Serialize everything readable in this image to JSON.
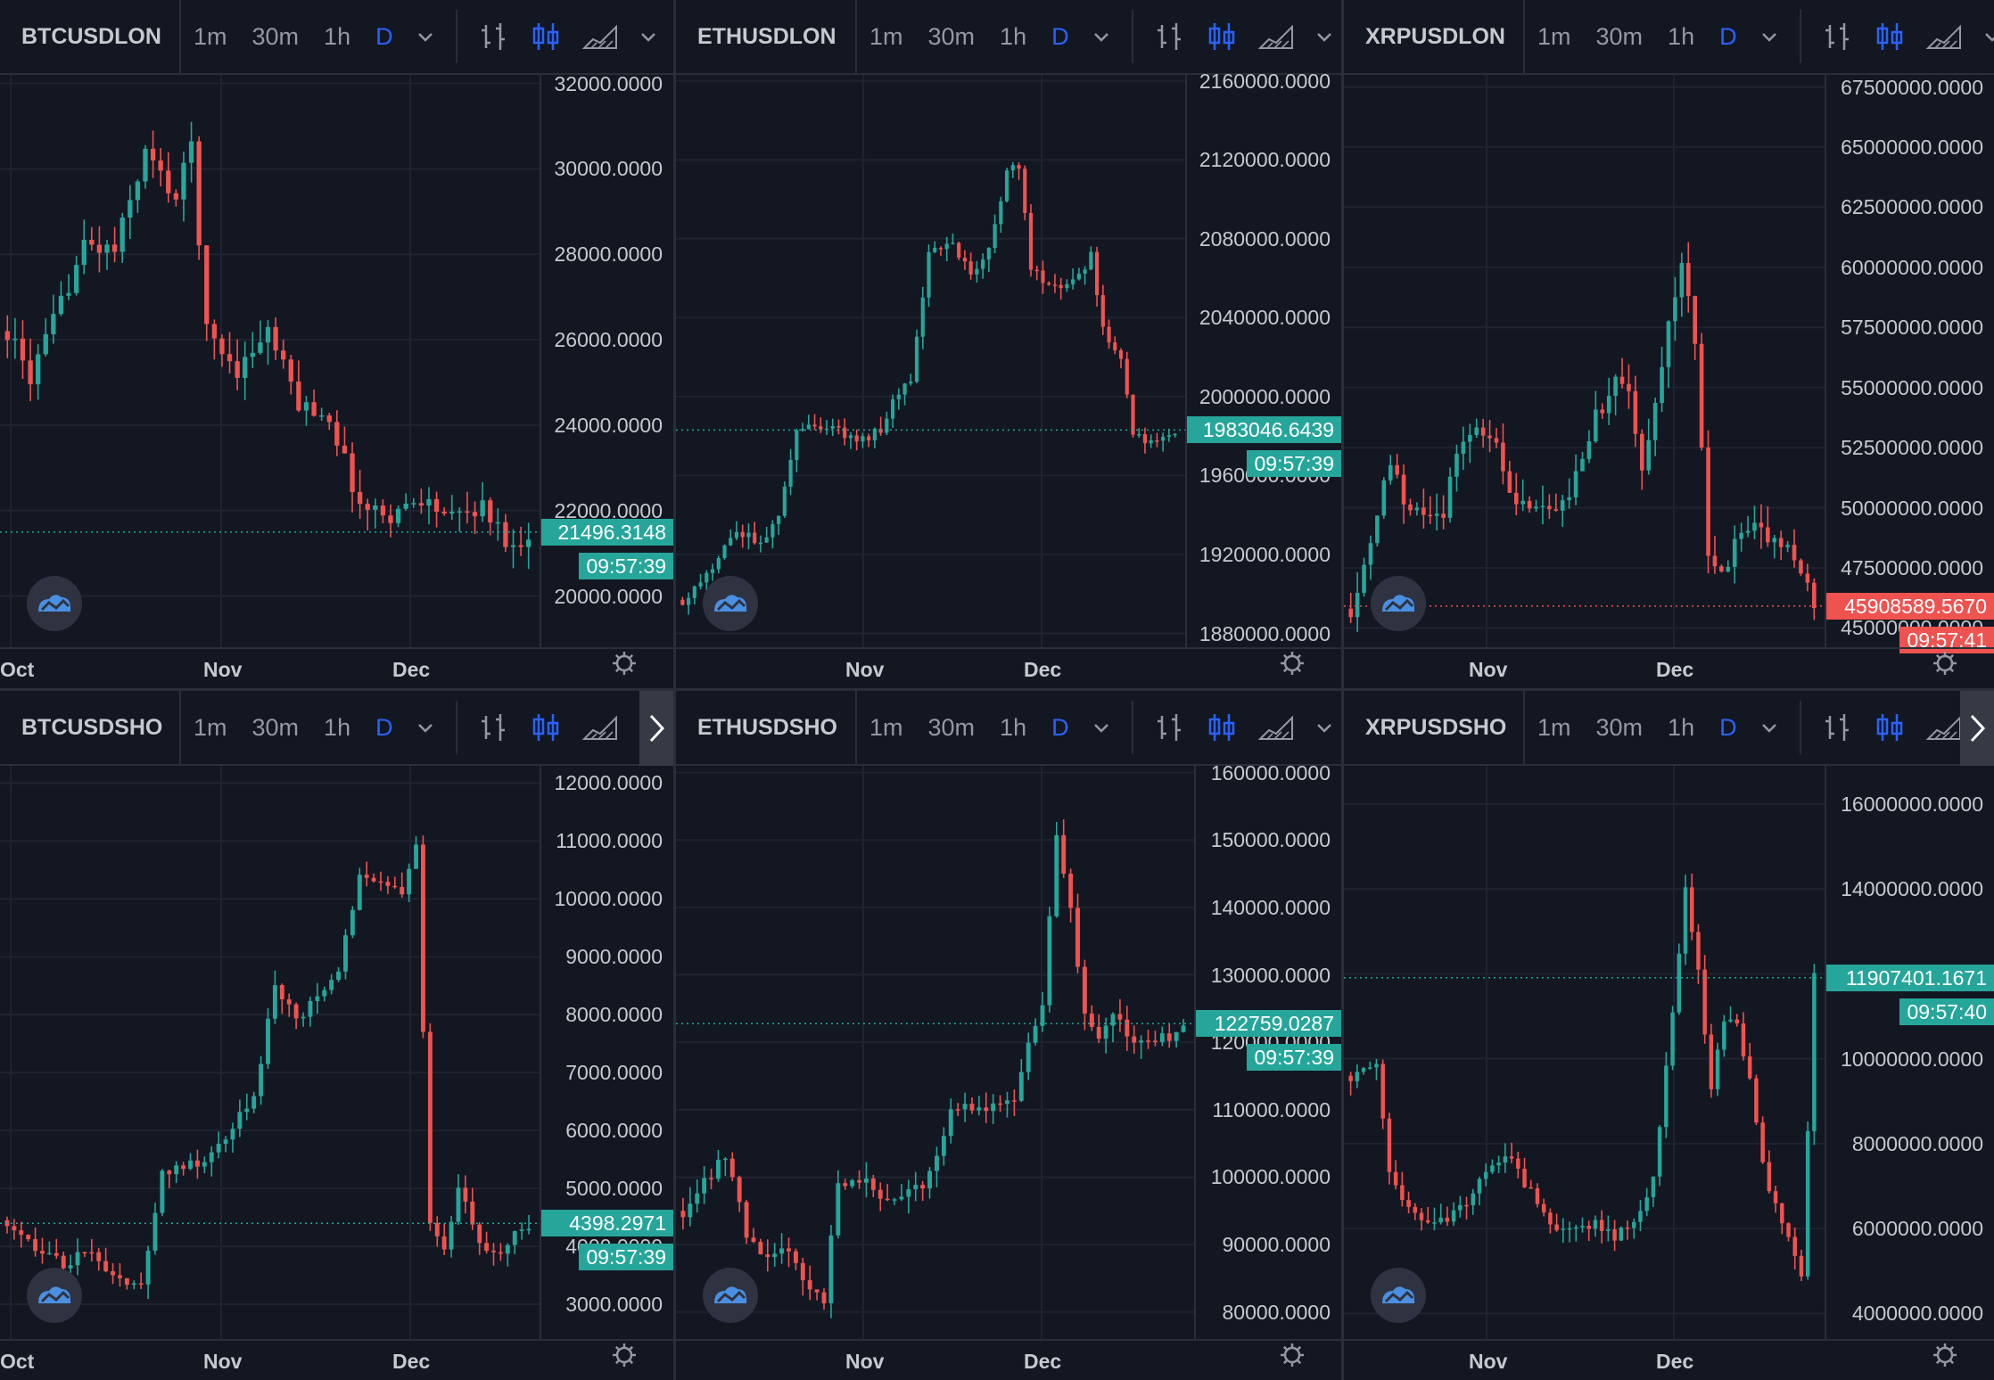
{
  "toolbar": {
    "intervals": [
      "1m",
      "30m",
      "1h",
      "D"
    ],
    "time_label": "09:57:39"
  },
  "colors": {
    "up": "#26a69a",
    "down": "#ef5350",
    "background": "#131722",
    "grid": "#1f2330",
    "accent": "#2962ff"
  },
  "chart_data": [
    {
      "type": "candlestick",
      "symbol": "BTCUSDLON",
      "x_labels": [
        "Oct",
        "Nov",
        "Dec"
      ],
      "y_ticks": [
        "32000.0000",
        "30000.0000",
        "28000.0000",
        "26000.0000",
        "24000.0000",
        "22000.0000",
        "20000.0000"
      ],
      "ylim": [
        18800,
        32200
      ],
      "last_price": "21496.3148",
      "last_direction": "up",
      "countdown": "09:57:39",
      "shape": [
        [
          0,
          26200
        ],
        [
          3,
          25100
        ],
        [
          6,
          26400
        ],
        [
          10,
          28200
        ],
        [
          14,
          28100
        ],
        [
          18,
          30400
        ],
        [
          22,
          29300
        ],
        [
          24,
          30600
        ],
        [
          26,
          26200
        ],
        [
          30,
          25300
        ],
        [
          34,
          26200
        ],
        [
          38,
          24500
        ],
        [
          42,
          24200
        ],
        [
          46,
          22100
        ],
        [
          50,
          21900
        ],
        [
          54,
          22300
        ],
        [
          58,
          21800
        ],
        [
          62,
          22100
        ],
        [
          66,
          21100
        ],
        [
          68,
          21500
        ]
      ],
      "highlow_spread": 520
    },
    {
      "type": "candlestick",
      "symbol": "ETHUSDLON",
      "x_labels": [
        "Nov",
        "Dec"
      ],
      "y_ticks": [
        "2160000.0000",
        "2120000.0000",
        "2080000.0000",
        "2040000.0000",
        "2000000.0000",
        "1960000.0000",
        "1920000.0000",
        "1880000.0000"
      ],
      "ylim": [
        1873000,
        2163000
      ],
      "last_price": "1983046.6439",
      "last_direction": "up",
      "countdown": "09:57:39",
      "shape": [
        [
          0,
          1897000
        ],
        [
          5,
          1913000
        ],
        [
          9,
          1932000
        ],
        [
          13,
          1925000
        ],
        [
          16,
          1937000
        ],
        [
          19,
          1982000
        ],
        [
          23,
          1986000
        ],
        [
          27,
          1981000
        ],
        [
          30,
          1978000
        ],
        [
          33,
          1983000
        ],
        [
          36,
          2003000
        ],
        [
          38,
          2007000
        ],
        [
          41,
          2075000
        ],
        [
          45,
          2076000
        ],
        [
          48,
          2062000
        ],
        [
          51,
          2074000
        ],
        [
          54,
          2115000
        ],
        [
          56,
          2118000
        ],
        [
          58,
          2065000
        ],
        [
          62,
          2055000
        ],
        [
          66,
          2060000
        ],
        [
          68,
          2072000
        ],
        [
          70,
          2033000
        ],
        [
          73,
          2017000
        ],
        [
          75,
          1983000
        ],
        [
          78,
          1976000
        ],
        [
          81,
          1980000
        ],
        [
          82,
          1983000
        ]
      ],
      "highlow_spread": 6500
    },
    {
      "type": "candlestick",
      "symbol": "XRPUSDLON",
      "x_labels": [
        "Nov",
        "Dec"
      ],
      "y_ticks": [
        "67500000.0000",
        "65000000.0000",
        "62500000.0000",
        "60000000.0000",
        "57500000.0000",
        "55000000.0000",
        "52500000.0000",
        "50000000.0000",
        "47500000.0000",
        "45000000.0000"
      ],
      "ylim": [
        44200000,
        68000000
      ],
      "last_price": "45908589.5670",
      "last_direction": "down",
      "countdown": "09:57:41",
      "shape": [
        [
          0,
          45800000
        ],
        [
          3,
          48500000
        ],
        [
          6,
          52000000
        ],
        [
          8,
          50200000
        ],
        [
          11,
          49800000
        ],
        [
          14,
          49600000
        ],
        [
          16,
          52300000
        ],
        [
          19,
          53200000
        ],
        [
          22,
          52700000
        ],
        [
          25,
          50100000
        ],
        [
          28,
          49800000
        ],
        [
          31,
          49800000
        ],
        [
          34,
          51200000
        ],
        [
          37,
          53800000
        ],
        [
          40,
          55100000
        ],
        [
          42,
          54600000
        ],
        [
          44,
          51400000
        ],
        [
          46,
          54000000
        ],
        [
          48,
          58000000
        ],
        [
          50,
          60000000
        ],
        [
          52,
          57000000
        ],
        [
          54,
          47800000
        ],
        [
          56,
          47200000
        ],
        [
          58,
          48500000
        ],
        [
          61,
          49300000
        ],
        [
          64,
          48400000
        ],
        [
          66,
          48700000
        ],
        [
          68,
          47300000
        ],
        [
          70,
          45900000
        ]
      ],
      "highlow_spread": 900000
    },
    {
      "type": "candlestick",
      "symbol": "BTCUSDSHO",
      "x_labels": [
        "Oct",
        "Nov",
        "Dec"
      ],
      "y_ticks": [
        "12000.0000",
        "11000.0000",
        "10000.0000",
        "9000.0000",
        "8000.0000",
        "7000.0000",
        "6000.0000",
        "5000.0000",
        "4000.0000",
        "3000.0000"
      ],
      "ylim": [
        2400,
        12300
      ],
      "last_price": "4398.2971",
      "last_direction": "up",
      "countdown": "09:57:39",
      "shape": [
        [
          0,
          4450
        ],
        [
          4,
          3950
        ],
        [
          8,
          3700
        ],
        [
          12,
          3900
        ],
        [
          15,
          3400
        ],
        [
          19,
          3300
        ],
        [
          22,
          5300
        ],
        [
          26,
          5400
        ],
        [
          29,
          5600
        ],
        [
          32,
          6100
        ],
        [
          35,
          6500
        ],
        [
          38,
          8500
        ],
        [
          41,
          7900
        ],
        [
          44,
          8300
        ],
        [
          47,
          8700
        ],
        [
          50,
          10500
        ],
        [
          54,
          10300
        ],
        [
          56,
          10100
        ],
        [
          58,
          11000
        ],
        [
          60,
          4300
        ],
        [
          62,
          3900
        ],
        [
          64,
          5000
        ],
        [
          67,
          4100
        ],
        [
          70,
          3800
        ],
        [
          72,
          4300
        ],
        [
          74,
          4400
        ]
      ],
      "highlow_spread": 260
    },
    {
      "type": "candlestick",
      "symbol": "ETHUSDSHO",
      "x_labels": [
        "Nov",
        "Dec"
      ],
      "y_ticks": [
        "160000.0000",
        "150000.0000",
        "140000.0000",
        "130000.0000",
        "120000.0000",
        "110000.0000",
        "100000.0000",
        "90000.0000",
        "80000.0000"
      ],
      "ylim": [
        76000,
        161000
      ],
      "last_price": "122759.0287",
      "last_direction": "up",
      "countdown": "09:57:39",
      "shape": [
        [
          0,
          95000
        ],
        [
          3,
          99000
        ],
        [
          6,
          103000
        ],
        [
          9,
          92000
        ],
        [
          12,
          88000
        ],
        [
          15,
          90000
        ],
        [
          18,
          83000
        ],
        [
          20,
          82000
        ],
        [
          22,
          99000
        ],
        [
          25,
          100000
        ],
        [
          28,
          97000
        ],
        [
          31,
          97000
        ],
        [
          34,
          99000
        ],
        [
          36,
          103000
        ],
        [
          38,
          111000
        ],
        [
          41,
          110000
        ],
        [
          44,
          111000
        ],
        [
          47,
          112000
        ],
        [
          49,
          119000
        ],
        [
          51,
          126000
        ],
        [
          53,
          150000
        ],
        [
          55,
          140000
        ],
        [
          57,
          124000
        ],
        [
          59,
          120000
        ],
        [
          61,
          125000
        ],
        [
          63,
          121000
        ],
        [
          66,
          120000
        ],
        [
          69,
          121000
        ],
        [
          71,
          122800
        ]
      ],
      "highlow_spread": 2500
    },
    {
      "type": "candlestick",
      "symbol": "XRPUSDSHO",
      "x_labels": [
        "Nov",
        "Dec"
      ],
      "y_ticks": [
        "16000000.0000",
        "14000000.0000",
        "12000000.0000",
        "10000000.0000",
        "8000000.0000",
        "6000000.0000",
        "4000000.0000"
      ],
      "ylim": [
        3400000,
        16900000
      ],
      "last_price": "11907401.1671",
      "last_direction": "up",
      "countdown": "09:57:40",
      "shape": [
        [
          0,
          9600000
        ],
        [
          2,
          9800000
        ],
        [
          4,
          10000000
        ],
        [
          6,
          7200000
        ],
        [
          9,
          6400000
        ],
        [
          12,
          6100000
        ],
        [
          15,
          6300000
        ],
        [
          18,
          6500000
        ],
        [
          21,
          7300000
        ],
        [
          24,
          7800000
        ],
        [
          26,
          7300000
        ],
        [
          29,
          6700000
        ],
        [
          32,
          6000000
        ],
        [
          35,
          5900000
        ],
        [
          38,
          6200000
        ],
        [
          41,
          5800000
        ],
        [
          44,
          6200000
        ],
        [
          47,
          7200000
        ],
        [
          50,
          11000000
        ],
        [
          52,
          14000000
        ],
        [
          54,
          12000000
        ],
        [
          56,
          9200000
        ],
        [
          58,
          11000000
        ],
        [
          60,
          10700000
        ],
        [
          62,
          9500000
        ],
        [
          64,
          7500000
        ],
        [
          66,
          6500000
        ],
        [
          68,
          5800000
        ],
        [
          70,
          4800000
        ],
        [
          72,
          11900000
        ]
      ],
      "highlow_spread": 350000
    }
  ]
}
